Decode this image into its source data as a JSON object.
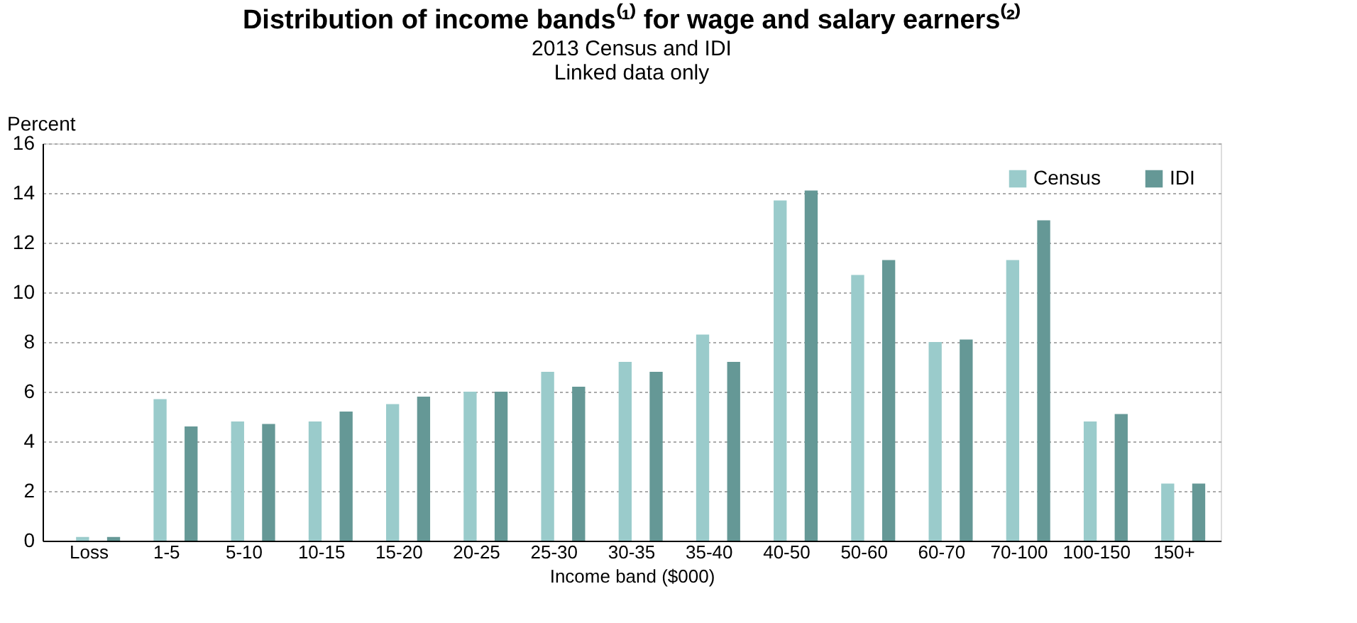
{
  "chart_data": {
    "type": "bar",
    "title": "Distribution of income bands⁽¹⁾ for wage and salary earners⁽²⁾",
    "subtitle": [
      "2013 Census and IDI",
      "Linked data only"
    ],
    "xlabel": "Income band ($000)",
    "ylabel": "Percent",
    "categories": [
      "Loss",
      "1-5",
      "5-10",
      "10-15",
      "15-20",
      "20-25",
      "25-30",
      "30-35",
      "35-40",
      "40-50",
      "50-60",
      "60-70",
      "70-100",
      "100-150",
      "150+"
    ],
    "series": [
      {
        "name": "Census",
        "color": "#9acbcb",
        "values": [
          0.15,
          5.7,
          4.8,
          4.8,
          5.5,
          6.0,
          6.8,
          7.2,
          8.3,
          13.7,
          10.7,
          8.0,
          11.3,
          4.8,
          2.3
        ]
      },
      {
        "name": "IDI",
        "color": "#659896",
        "values": [
          0.15,
          4.6,
          4.7,
          5.2,
          5.8,
          6.0,
          6.2,
          6.8,
          7.2,
          14.1,
          11.3,
          8.1,
          12.9,
          5.1,
          2.3
        ]
      }
    ],
    "ylim": [
      0,
      16
    ],
    "yticks": [
      0,
      2,
      4,
      6,
      8,
      10,
      12,
      14,
      16
    ],
    "grid": "y",
    "legend": "top right"
  }
}
